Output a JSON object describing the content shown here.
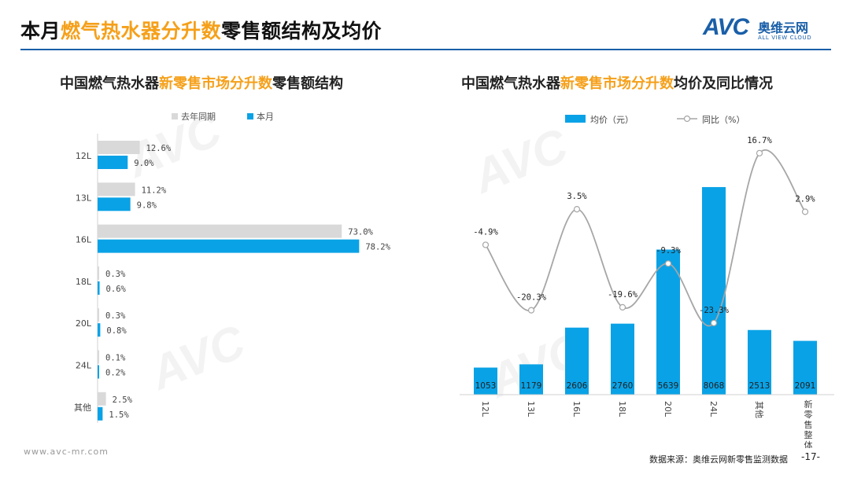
{
  "header": {
    "title_part1": "本月",
    "title_highlight": "燃气热水器分升数",
    "title_part2": "零售额结构及均价"
  },
  "logo": {
    "brand": "AVC",
    "cn": "奥维云网",
    "en": "ALL VIEW CLOUD"
  },
  "left_panel": {
    "title_part1": "中国燃气热水器",
    "title_highlight": "新零售市场分升数",
    "title_part2": "零售额结构"
  },
  "right_panel": {
    "title_part1": "中国燃气热水器",
    "title_highlight": "新零售市场分升数",
    "title_part2": "均价及同比情况"
  },
  "footer": {
    "url": "www.avc-mr.com",
    "source": "数据来源：奥维云网新零售监测数据",
    "page": "-17-"
  },
  "colors": {
    "accent": "#f5a01a",
    "brand_blue": "#1a5fa8",
    "bar_blue": "#0aa2e6",
    "bar_gray": "#d9d9d9",
    "line_gray": "#a6a6a6"
  },
  "chart_data": [
    {
      "type": "bar",
      "orientation": "horizontal",
      "categories": [
        "12L",
        "13L",
        "16L",
        "18L",
        "20L",
        "24L",
        "其他"
      ],
      "series": [
        {
          "name": "去年同期",
          "values": [
            12.6,
            11.2,
            73.0,
            0.3,
            0.3,
            0.1,
            2.5
          ],
          "labels": [
            "12.6%",
            "11.2%",
            "73.0%",
            "0.3%",
            "0.3%",
            "0.1%",
            "2.5%"
          ]
        },
        {
          "name": "本月",
          "values": [
            9.0,
            9.8,
            78.2,
            0.6,
            0.8,
            0.2,
            1.5
          ],
          "labels": [
            "9.0%",
            "9.8%",
            "78.2%",
            "0.6%",
            "0.8%",
            "0.2%",
            "1.5%"
          ]
        }
      ],
      "xlim": [
        0,
        100
      ],
      "legend": "top-left",
      "grid": false
    },
    {
      "type": "bar",
      "categories": [
        "12L",
        "13L",
        "16L",
        "18L",
        "20L",
        "24L",
        "其他",
        "新零售整体"
      ],
      "series": [
        {
          "name": "均价（元）",
          "type": "bar",
          "values": [
            1053,
            1179,
            2606,
            2760,
            5639,
            8068,
            2513,
            2091
          ],
          "labels": [
            "1053",
            "1179",
            "2606",
            "2760",
            "5639",
            "8068",
            "2513",
            "2091"
          ]
        },
        {
          "name": "同比（%）",
          "type": "line",
          "axis": "secondary",
          "values": [
            -4.9,
            -20.3,
            3.5,
            -19.6,
            -9.3,
            -23.3,
            16.7,
            2.9
          ],
          "labels": [
            "-4.9%",
            "-20.3%",
            "3.5%",
            "-19.6%",
            "-9.3%",
            "-23.3%",
            "16.7%",
            "2.9%"
          ]
        }
      ],
      "ylim": [
        0,
        11000
      ],
      "y2lim": [
        -30,
        20
      ],
      "legend": "top",
      "grid": false
    }
  ]
}
